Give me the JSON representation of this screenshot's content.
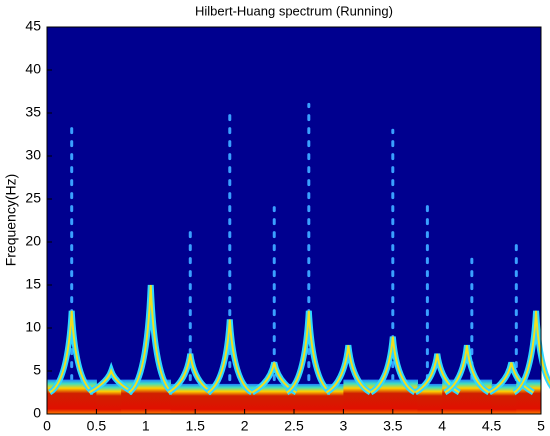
{
  "chart_data": {
    "type": "spectrum",
    "title": "Hilbert-Huang spectrum (Running)",
    "ylabel": "Frequency(Hz)",
    "xlim": [
      0,
      5
    ],
    "ylim": [
      0,
      45
    ],
    "xticks": [
      0,
      0.5,
      1,
      1.5,
      2,
      2.5,
      3,
      3.5,
      4,
      4.5,
      5
    ],
    "yticks": [
      0,
      5,
      10,
      15,
      20,
      25,
      30,
      35,
      40,
      45
    ],
    "colors": {
      "background": "#00008f",
      "peak": "#30d8ff",
      "peak_core": "#f0e020",
      "streak": "#3aa0ff"
    },
    "band": {
      "x": [
        0,
        0.25,
        0.5,
        0.75,
        1,
        1.25,
        1.5,
        1.75,
        2,
        2.25,
        2.5,
        2.75,
        3,
        3.25,
        3.5,
        3.75,
        4,
        4.25,
        4.5,
        4.75
      ],
      "values": [
        4,
        4,
        3.5,
        4,
        4,
        3.5,
        3.5,
        3.5,
        3.5,
        3.5,
        3.5,
        3.5,
        4,
        4,
        4,
        3.5,
        4,
        4,
        3.5,
        4
      ]
    },
    "peaks": {
      "x": [
        0.25,
        0.65,
        1.05,
        1.45,
        1.85,
        2.3,
        2.65,
        3.05,
        3.5,
        3.95,
        4.25,
        4.7,
        4.95
      ],
      "values": [
        12,
        5,
        15,
        7,
        11,
        6,
        12,
        8,
        9,
        7,
        8,
        6,
        12
      ]
    },
    "streaks": {
      "x": [
        0.25,
        1.45,
        1.85,
        2.3,
        2.65,
        3.5,
        3.85,
        4.3,
        4.75
      ],
      "values": [
        34,
        22,
        35,
        24,
        36,
        33,
        25,
        18,
        20
      ]
    }
  }
}
